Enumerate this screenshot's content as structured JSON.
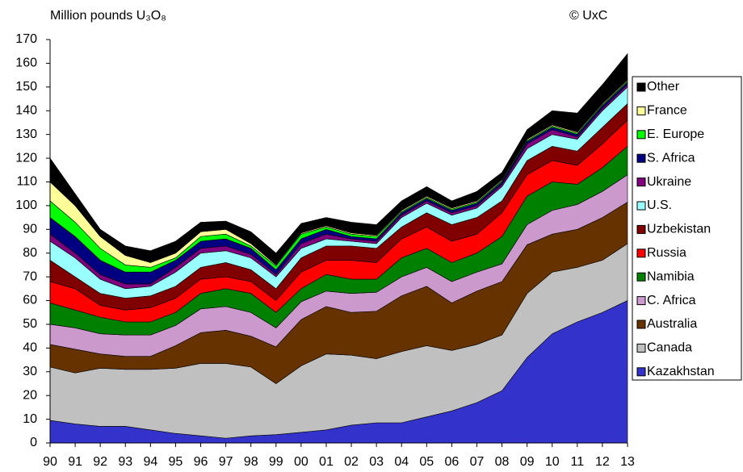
{
  "chart_data": {
    "type": "stacked_area",
    "y_label": "Million pounds U₃O₈",
    "annotation": "© UxC",
    "categories": [
      "90",
      "91",
      "92",
      "93",
      "94",
      "95",
      "96",
      "97",
      "98",
      "99",
      "00",
      "01",
      "02",
      "03",
      "04",
      "05",
      "06",
      "07",
      "08",
      "09",
      "10",
      "11",
      "12",
      "13"
    ],
    "ylim": [
      0,
      170
    ],
    "yticks": [
      0,
      10,
      20,
      30,
      40,
      50,
      60,
      70,
      80,
      90,
      100,
      110,
      120,
      130,
      140,
      150,
      160,
      170
    ],
    "grid": false,
    "legend": "right",
    "series": [
      {
        "name": "Kazakhstan",
        "color": "#3333cc",
        "values": [
          9.5,
          8,
          7,
          7,
          5.5,
          4,
          3,
          2,
          3,
          3.5,
          4.5,
          5.5,
          7.5,
          8.5,
          8.5,
          11,
          13.5,
          17,
          22,
          36,
          46,
          51,
          55,
          60
        ]
      },
      {
        "name": "Canada",
        "color": "#c0c0c0",
        "values": [
          22.5,
          21.5,
          24.5,
          24,
          25.5,
          27.5,
          30.5,
          31.5,
          29,
          21.5,
          28,
          32,
          29.5,
          27,
          30,
          30,
          25.5,
          24.5,
          23.5,
          27,
          26,
          23,
          22,
          24
        ]
      },
      {
        "name": "Australia",
        "color": "#663300",
        "values": [
          9.5,
          10,
          6,
          5.5,
          5.5,
          9.5,
          13,
          14,
          13,
          15.5,
          19.5,
          20,
          18,
          20,
          23.5,
          25,
          20,
          22.5,
          22.5,
          20.5,
          16,
          16,
          18,
          17.5
        ]
      },
      {
        "name": "C. Africa",
        "color": "#cc99cc",
        "values": [
          8.5,
          9,
          8.5,
          9,
          9,
          8.5,
          10,
          10,
          10,
          8,
          7.5,
          6.5,
          8,
          8,
          8,
          8,
          9,
          8,
          7.5,
          8.5,
          10,
          10.5,
          11,
          11.5
        ]
      },
      {
        "name": "Namibia",
        "color": "#008000",
        "values": [
          9,
          7.5,
          7,
          5.5,
          5.5,
          5.5,
          6.5,
          7.5,
          8,
          6.5,
          5.5,
          7,
          6,
          5.5,
          8,
          8,
          8,
          8,
          11.5,
          12,
          12,
          8.5,
          10,
          12
        ]
      },
      {
        "name": "Russia",
        "color": "#ff0000",
        "values": [
          9,
          9,
          5,
          5,
          6,
          6,
          6,
          5,
          5,
          5,
          7,
          6,
          8,
          7,
          8,
          9,
          9,
          8,
          10,
          9,
          9,
          8,
          10,
          11
        ]
      },
      {
        "name": "Uzbekistan",
        "color": "#800000",
        "values": [
          9,
          5,
          5,
          5,
          5,
          5,
          5,
          6,
          5,
          5,
          6,
          6,
          6,
          6,
          5,
          6,
          7,
          7,
          5,
          6,
          6,
          6,
          7,
          7
        ]
      },
      {
        "name": "U.S.",
        "color": "#99ffff",
        "values": [
          8,
          8,
          6,
          4,
          4,
          6,
          6,
          5,
          5,
          5,
          4,
          3,
          2,
          2,
          4,
          4,
          4,
          4,
          6,
          5,
          5,
          5,
          7,
          7
        ]
      },
      {
        "name": "Ukraine",
        "color": "#800080",
        "values": [
          3,
          2,
          2,
          2,
          1,
          2,
          2,
          2,
          1.5,
          1,
          2,
          2,
          1,
          1,
          1,
          1,
          1,
          1,
          1,
          2,
          2,
          1,
          1,
          1
        ]
      },
      {
        "name": "S. Africa",
        "color": "#000080",
        "values": [
          7,
          7,
          6,
          5,
          5,
          3,
          3,
          3,
          2.5,
          2,
          2,
          2,
          1,
          1,
          1,
          1,
          1,
          1,
          1,
          1,
          1,
          1,
          1,
          1
        ]
      },
      {
        "name": "E. Europe",
        "color": "#00ff00",
        "values": [
          7,
          6,
          5,
          3,
          2,
          1,
          2,
          2,
          1,
          1.5,
          2,
          1,
          1,
          1,
          0.5,
          0.5,
          0.5,
          0.5,
          0.5,
          0.5,
          0.5,
          0.5,
          0.5,
          0.5
        ]
      },
      {
        "name": "France",
        "color": "#ffff99",
        "values": [
          8,
          7,
          5,
          4,
          2,
          2,
          2,
          2,
          1,
          0.5,
          0.5,
          0.5,
          0.5,
          0.5,
          0.5,
          0.5,
          0.5,
          0.5,
          0.5,
          0.5,
          0.5,
          0.5,
          0.5,
          0.5
        ]
      },
      {
        "name": "Other",
        "color": "#000000",
        "values": [
          10,
          5,
          3,
          4,
          5,
          5,
          4,
          3.5,
          5,
          5,
          4,
          3.5,
          4.5,
          4.5,
          4,
          4,
          3,
          4,
          3,
          4,
          6,
          8,
          8,
          11
        ]
      }
    ]
  }
}
